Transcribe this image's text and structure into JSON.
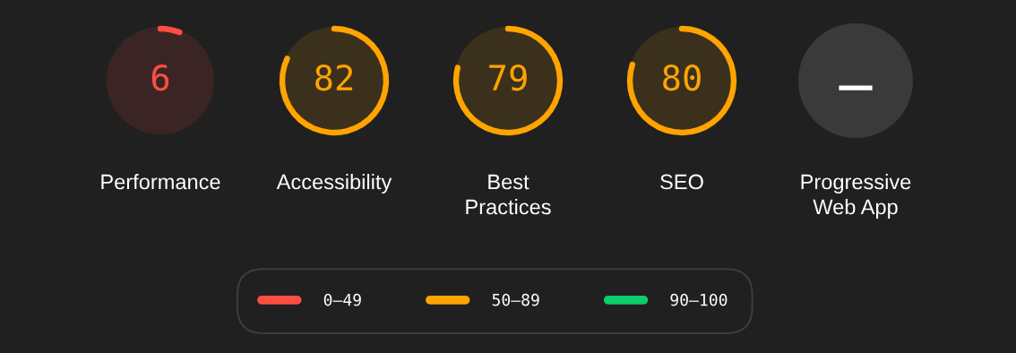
{
  "chart_data": {
    "type": "other",
    "categories": [
      "Performance",
      "Accessibility",
      "Best\nPractices",
      "SEO",
      "Progressive\nWeb App"
    ],
    "series": [
      {
        "name": "0–49",
        "color": "#ff4e42",
        "values": [
          6,
          null,
          null,
          null,
          null
        ]
      },
      {
        "name": "50–89",
        "color": "#ffa400",
        "values": [
          null,
          82,
          79,
          80,
          null
        ]
      },
      {
        "name": "90–100",
        "color": "#0cce6b",
        "values": [
          null,
          null,
          null,
          null,
          null
        ]
      }
    ],
    "annotations": [
      {
        "text": "—",
        "x": "Progressive\nWeb App"
      }
    ],
    "data_labels": true,
    "legend": "bottom"
  }
}
